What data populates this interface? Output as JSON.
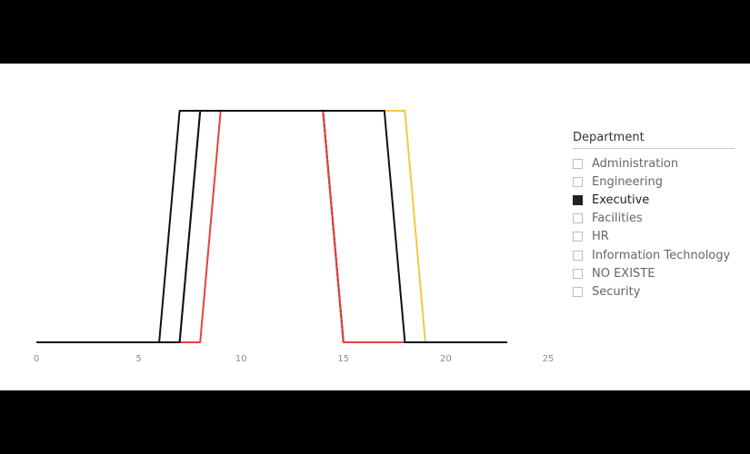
{
  "chart_data": {
    "type": "line",
    "title": "",
    "xlabel": "",
    "ylabel": "",
    "xlim": [
      0,
      25
    ],
    "ylim": [
      0,
      1
    ],
    "xticks": [
      0,
      5,
      10,
      15,
      20,
      25
    ],
    "grid": false,
    "legend_position": "right",
    "series": [
      {
        "color": "#111111",
        "x": [
          0,
          6,
          7,
          14,
          15,
          23
        ],
        "y": [
          0,
          0,
          1,
          1,
          0,
          0
        ]
      },
      {
        "color": "#3a3a2a",
        "x": [
          0,
          7,
          8,
          14,
          15,
          23
        ],
        "y": [
          0,
          0,
          1,
          1,
          0,
          0
        ]
      },
      {
        "color": "#e8413c",
        "x": [
          0,
          8,
          9,
          14,
          15,
          23
        ],
        "y": [
          0,
          0,
          1,
          1,
          0,
          0
        ]
      },
      {
        "color": "#f5c842",
        "x": [
          0,
          7,
          8,
          18,
          19,
          23
        ],
        "y": [
          0,
          0,
          1,
          1,
          0,
          0
        ]
      },
      {
        "color": "#111111",
        "x": [
          0,
          7,
          8,
          17,
          18,
          23
        ],
        "y": [
          0,
          0,
          1,
          1,
          0,
          0
        ]
      }
    ]
  },
  "legend": {
    "title": "Department",
    "items": [
      {
        "label": "Administration",
        "selected": false
      },
      {
        "label": "Engineering",
        "selected": false
      },
      {
        "label": "Executive",
        "selected": true
      },
      {
        "label": "Facilities",
        "selected": false
      },
      {
        "label": "HR",
        "selected": false
      },
      {
        "label": "Information Technology",
        "selected": false
      },
      {
        "label": "NO EXISTE",
        "selected": false
      },
      {
        "label": "Security",
        "selected": false
      }
    ]
  }
}
